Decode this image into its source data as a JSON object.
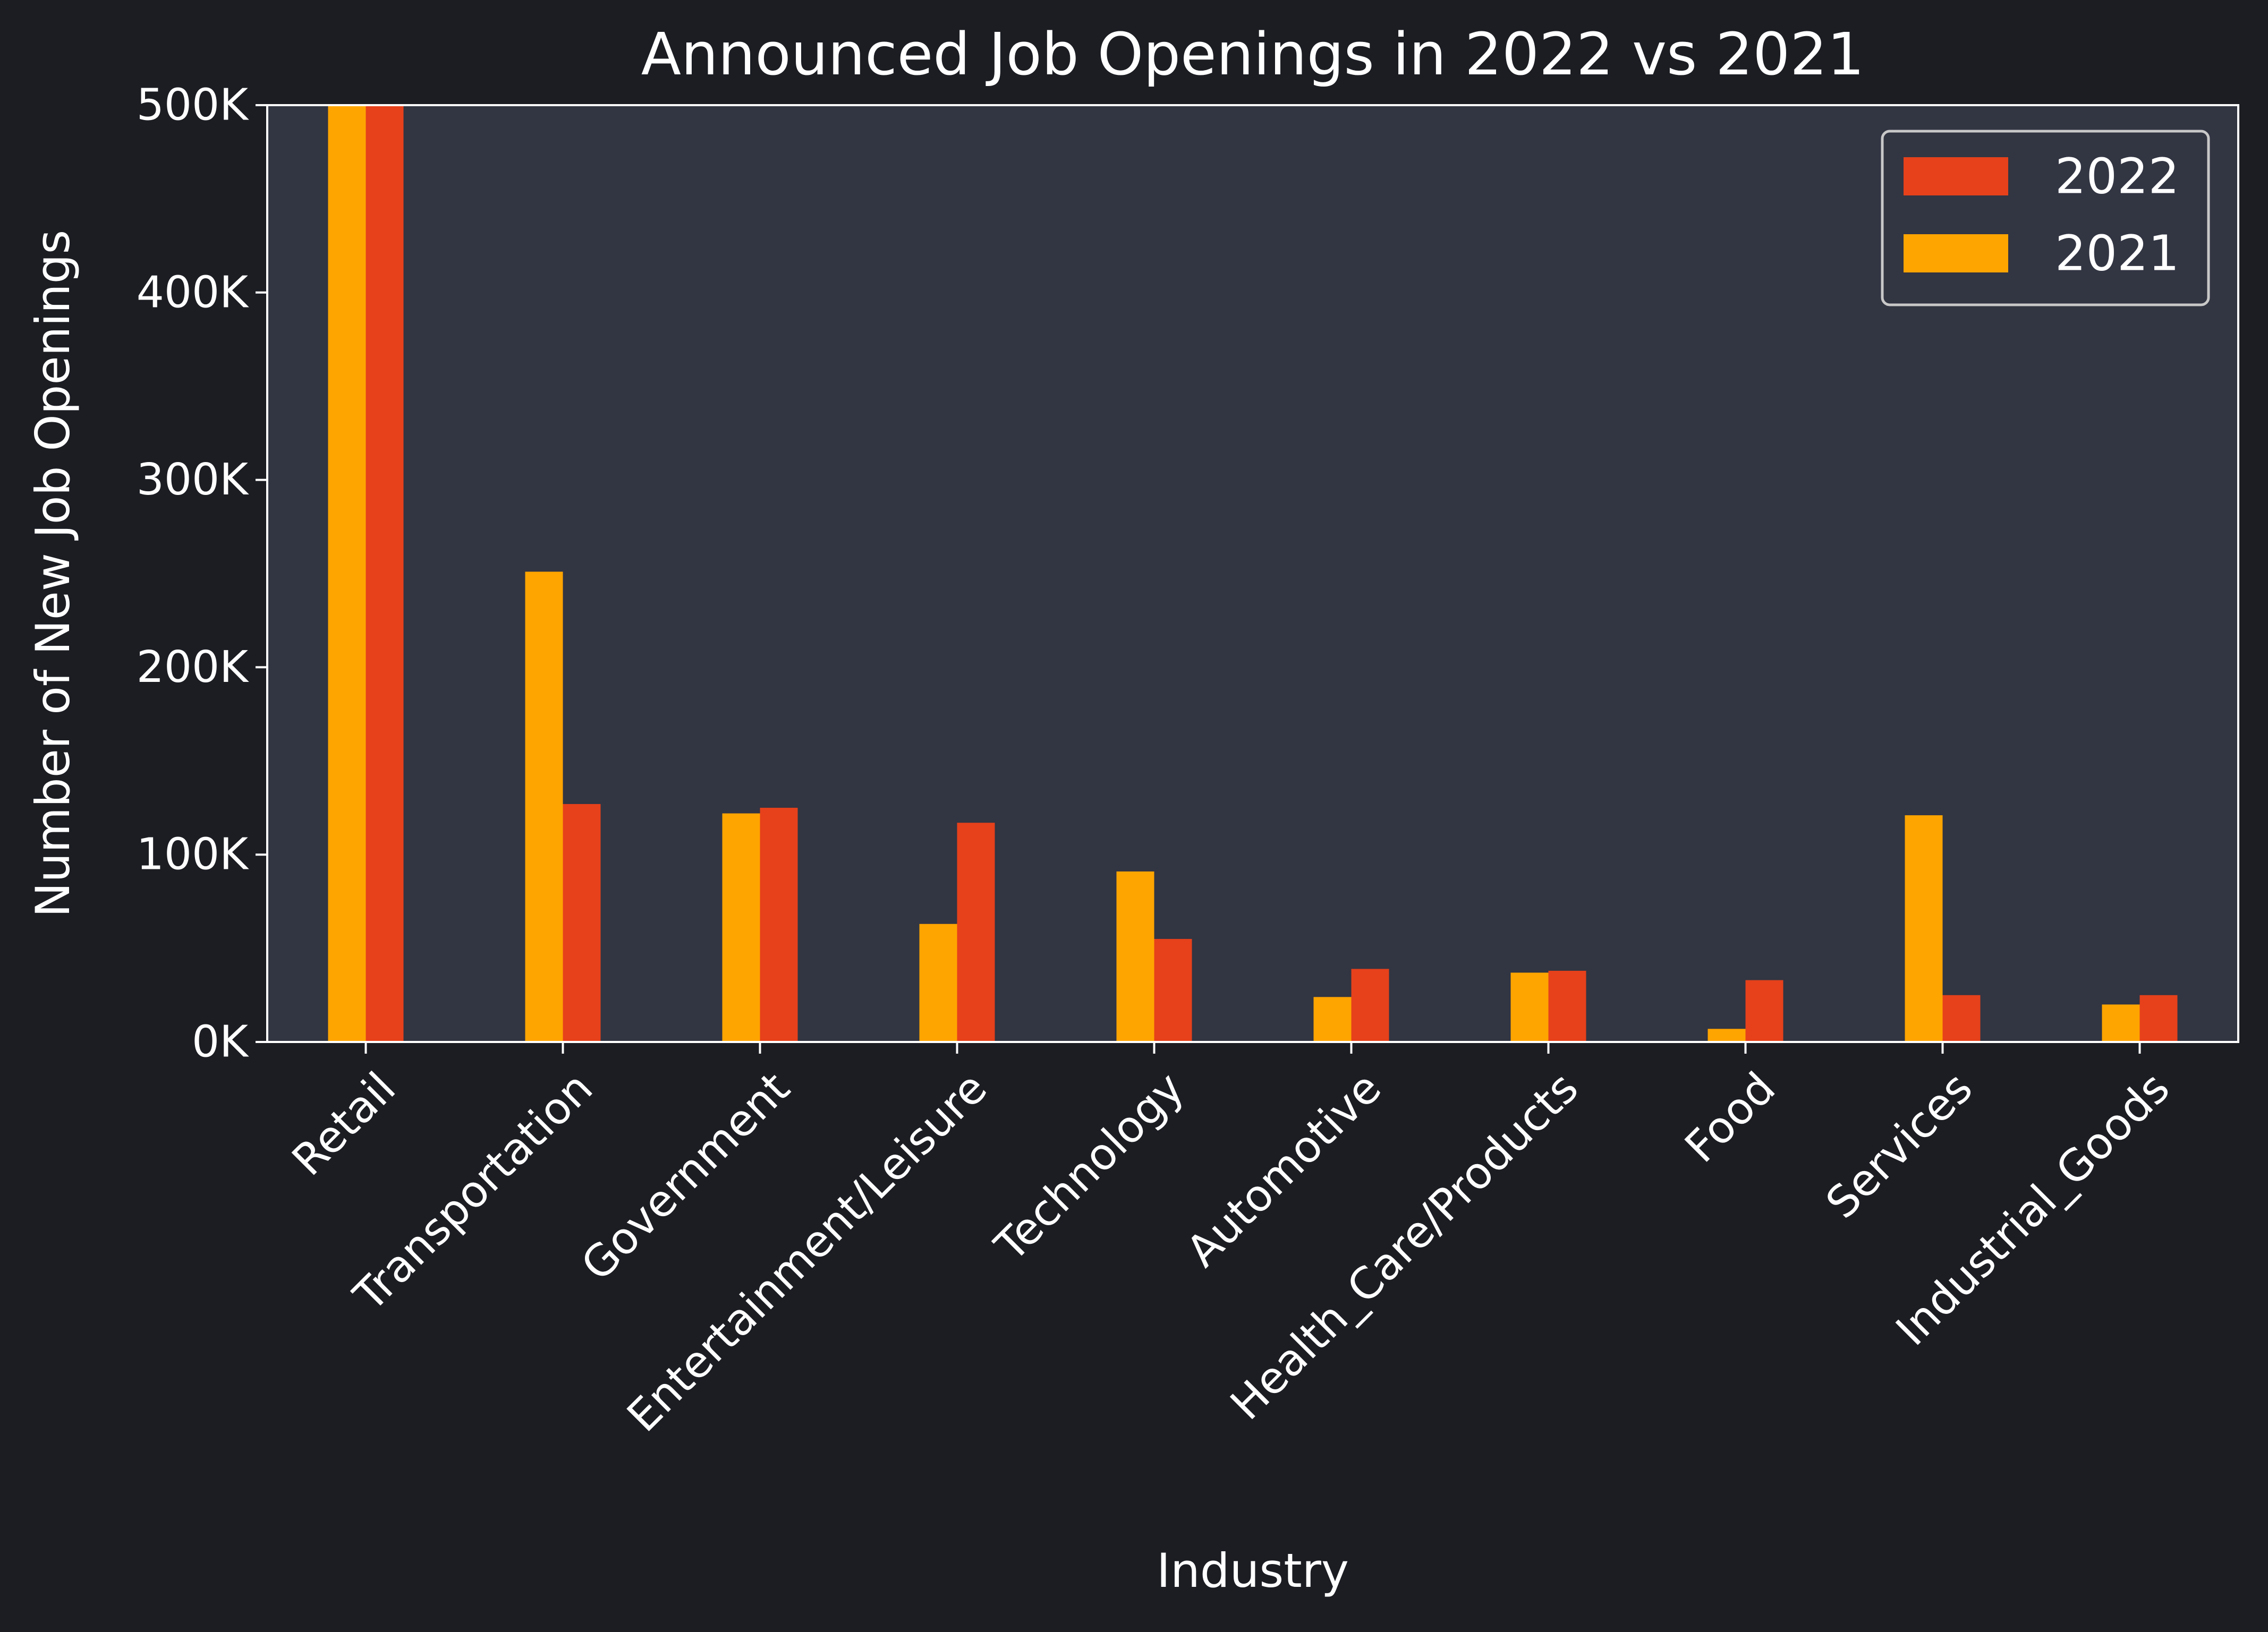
{
  "colors": {
    "figure_background": "#1b1d23",
    "axes_background": "#323542",
    "text": "#ffffff",
    "series_2022": "#e6411b",
    "series_2021": "#ffa500"
  },
  "chart_data": {
    "type": "bar",
    "title": "Announced Job Openings in 2022 vs 2021",
    "xlabel": "Industry",
    "ylabel": "Number of New Job Openings",
    "ylim": [
      0,
      500000
    ],
    "yticks": [
      0,
      100000,
      200000,
      300000,
      400000,
      500000
    ],
    "ytick_labels": [
      "0K",
      "100K",
      "200K",
      "300K",
      "400K",
      "500K"
    ],
    "categories": [
      "Retail",
      "Transportation",
      "Government",
      "Entertainment/Leisure",
      "Technology",
      "Automotive",
      "Health_Care/Products",
      "Food",
      "Services",
      "Industrial_Goods"
    ],
    "series": [
      {
        "name": "2021",
        "color": "#ffa500",
        "values": [
          500000,
          251000,
          122000,
          63000,
          91000,
          24000,
          37000,
          7000,
          121000,
          20000
        ]
      },
      {
        "name": "2022",
        "color": "#e6411b",
        "values": [
          500000,
          127000,
          125000,
          117000,
          55000,
          39000,
          38000,
          33000,
          25000,
          25000
        ]
      }
    ],
    "legend": {
      "position": "top-right",
      "order": [
        "2022",
        "2021"
      ]
    },
    "grid": false
  }
}
